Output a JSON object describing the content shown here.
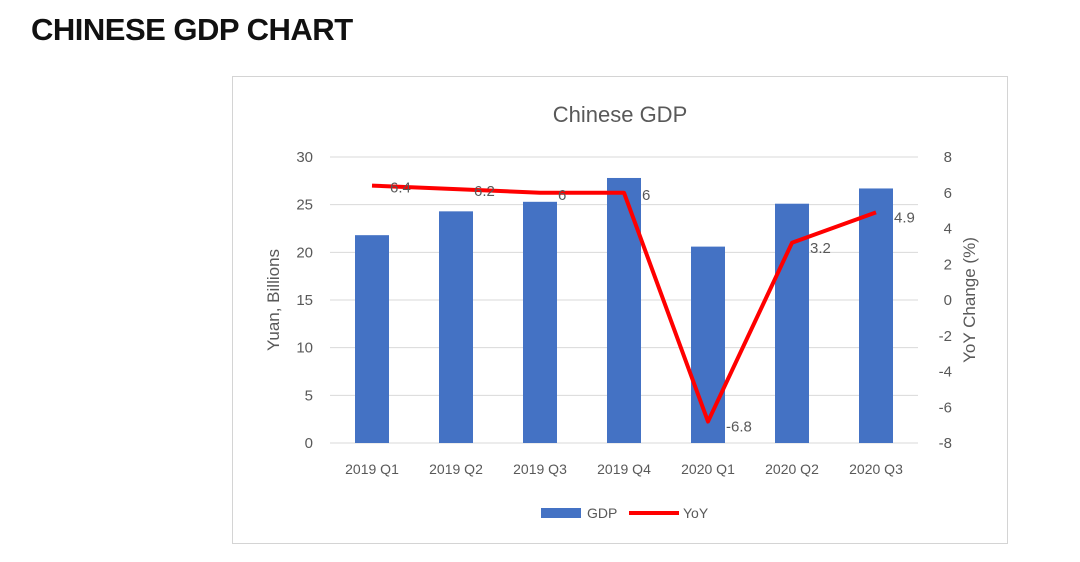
{
  "page": {
    "heading": "CHINESE GDP CHART"
  },
  "colors": {
    "gdp_bar": "#4472c4",
    "yoy_line": "#ff0000",
    "text": "#595959",
    "grid": "#d9d9d9"
  },
  "chart_data": {
    "type": "bar",
    "title": "Chinese GDP",
    "categories": [
      "2019 Q1",
      "2019 Q2",
      "2019 Q3",
      "2019 Q4",
      "2020 Q1",
      "2020 Q2",
      "2020 Q3"
    ],
    "series": [
      {
        "name": "GDP",
        "type": "bar",
        "axis": "left",
        "values": [
          21.8,
          24.3,
          25.3,
          27.8,
          20.6,
          25.1,
          26.7
        ]
      },
      {
        "name": "YoY",
        "type": "line",
        "axis": "right",
        "values": [
          6.4,
          6.2,
          6,
          6,
          -6.8,
          3.2,
          4.9
        ],
        "labels": [
          "6.4",
          "6.2",
          "6",
          "6",
          "-6.8",
          "3.2",
          "4.9"
        ]
      }
    ],
    "ylabel": "Yuan, Billions",
    "y2label": "YoY Change (%)",
    "ylim": [
      0,
      30
    ],
    "y2lim": [
      -8,
      8
    ],
    "yticks": [
      "0",
      "5",
      "10",
      "15",
      "20",
      "25",
      "30"
    ],
    "y2ticks": [
      "-8",
      "-6",
      "-4",
      "-2",
      "0",
      "2",
      "4",
      "6",
      "8"
    ],
    "grid": true,
    "legend": "bottom"
  }
}
